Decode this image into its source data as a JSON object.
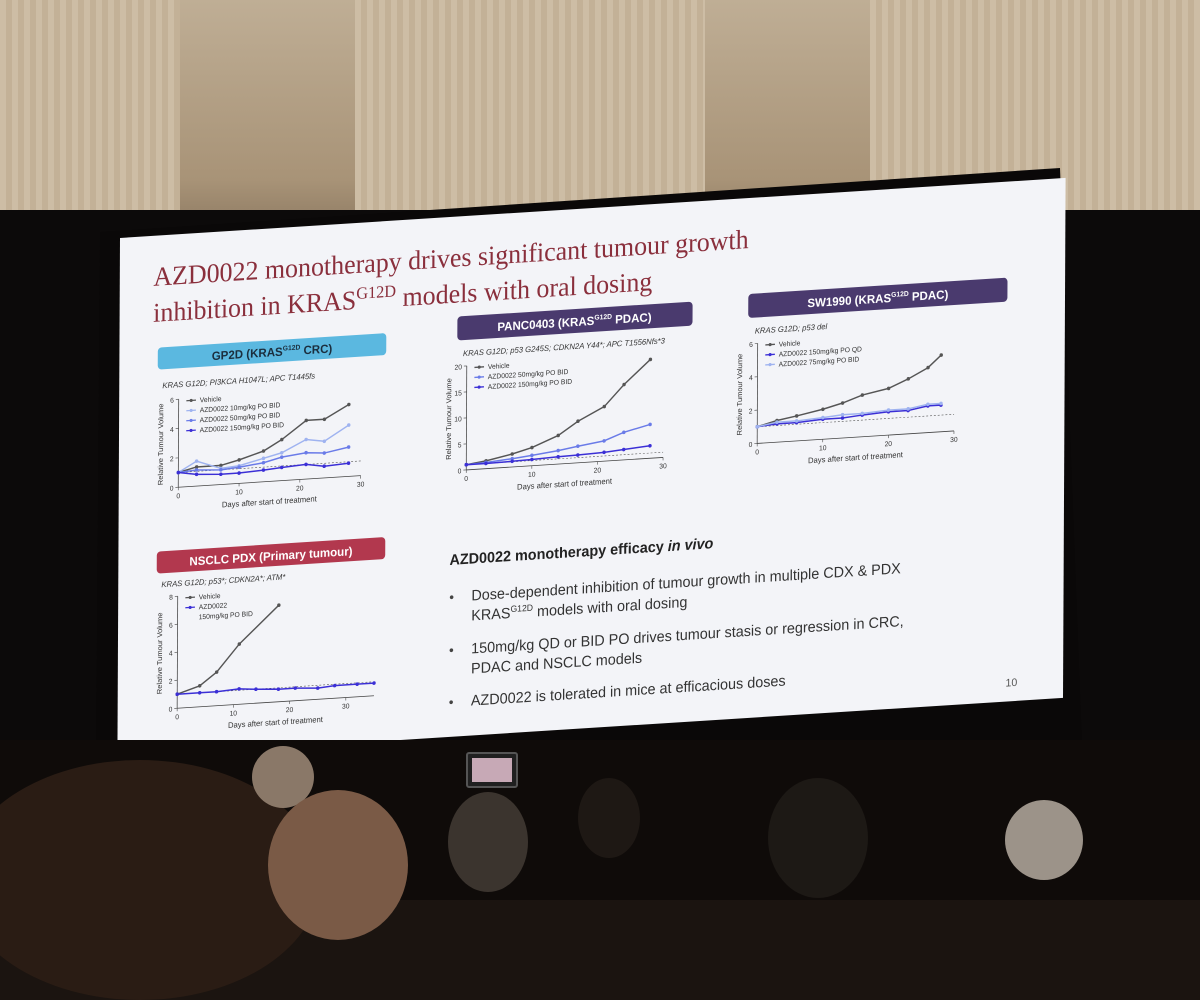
{
  "title_line1": "AZD0022 monotherapy drives significant tumour growth",
  "title_line2_pre": "inhibition in KRAS",
  "title_line2_sup": "G12D",
  "title_line2_post": " models with oral dosing",
  "page_number": "10",
  "colors": {
    "crc": "#5bb8e0",
    "pdac": "#4a3a6e",
    "nsclc": "#b2384e",
    "title": "#8a2f3c",
    "vehicle": "#555555",
    "dose_high": "#3b2fd6",
    "dose_mid": "#6a7be8",
    "dose_low": "#9fb3f0"
  },
  "charts": {
    "gp2d": {
      "header_pre": "GP2D (KRAS",
      "header_sup": "G12D",
      "header_post": " CRC)",
      "genotype": "KRAS G12D; PI3KCA H1047L; APC T1445fs",
      "ylabel": "Relative Tumour Volume",
      "xlabel": "Days after start of treatment",
      "legend": [
        "Vehicle",
        "AZD0022 10mg/kg PO BID",
        "AZD0022 50mg/kg PO BID",
        "AZD0022 150mg/kg PO BID"
      ]
    },
    "panc0403": {
      "header_pre": "PANC0403 (KRAS",
      "header_sup": "G12D",
      "header_post": " PDAC)",
      "genotype": "KRAS G12D; p53 G245S; CDKN2A Y44*; APC T1556Nfs*3",
      "ylabel": "Relative Tumour Volume",
      "xlabel": "Days after start of treatment",
      "legend": [
        "Vehicle",
        "AZD0022 50mg/kg PO BID",
        "AZD0022 150mg/kg PO BID"
      ]
    },
    "sw1990": {
      "header_pre": "SW1990 (KRAS",
      "header_sup": "G12D",
      "header_post": " PDAC)",
      "genotype": "KRAS G12D; p53 del",
      "ylabel": "Relative Tumour Volume",
      "xlabel": "Days after start of treatment",
      "legend": [
        "Vehicle",
        "AZD0022 150mg/kg PO QD",
        "AZD0022 75mg/kg PO BID"
      ]
    },
    "nsclc": {
      "header": "NSCLC PDX (Primary tumour)",
      "genotype": "KRAS G12D; p53*; CDKN2A*; ATM*",
      "ylabel": "Relative Tumour Volume",
      "xlabel": "Days after start of treatment",
      "legend": [
        "Vehicle",
        "AZD0022",
        "150mg/kg PO BID"
      ]
    }
  },
  "efficacy": {
    "heading_pre": "AZD0022 monotherapy efficacy ",
    "heading_em": "in vivo",
    "bullet1_line1": "Dose-dependent inhibition of tumour growth in multiple CDX & PDX",
    "bullet1_line2_pre": "KRAS",
    "bullet1_line2_sup": "G12D",
    "bullet1_line2_post": " models with oral dosing",
    "bullet2_line1": "150mg/kg QD or BID PO drives tumour stasis or regression in CRC,",
    "bullet2_line2": "PDAC and NSCLC models",
    "bullet3": "AZD0022 is tolerated in mice at efficacious doses"
  },
  "chart_data": [
    {
      "type": "line",
      "title": "GP2D (KRAS G12D CRC)",
      "xlabel": "Days after start of treatment",
      "ylabel": "Relative Tumour Volume",
      "xlim": [
        0,
        30
      ],
      "ylim": [
        0,
        6
      ],
      "xticks": [
        0,
        10,
        20,
        30
      ],
      "yticks": [
        0,
        2,
        4,
        6
      ],
      "series": [
        {
          "name": "Vehicle",
          "x": [
            0,
            3,
            7,
            10,
            14,
            17,
            21,
            24,
            28
          ],
          "y": [
            1.0,
            1.3,
            1.3,
            1.6,
            2.1,
            2.8,
            4.0,
            4.0,
            4.9
          ]
        },
        {
          "name": "AZD0022 10mg/kg PO BID",
          "x": [
            0,
            3,
            7,
            10,
            14,
            17,
            21,
            24,
            28
          ],
          "y": [
            1.0,
            1.7,
            1.1,
            1.2,
            1.6,
            1.9,
            2.7,
            2.5,
            3.5
          ]
        },
        {
          "name": "AZD0022 50mg/kg PO BID",
          "x": [
            0,
            3,
            7,
            10,
            14,
            17,
            21,
            24,
            28
          ],
          "y": [
            1.0,
            1.1,
            1.0,
            1.1,
            1.3,
            1.6,
            1.8,
            1.7,
            2.0
          ]
        },
        {
          "name": "AZD0022 150mg/kg PO BID",
          "x": [
            0,
            3,
            7,
            10,
            14,
            17,
            21,
            24,
            28
          ],
          "y": [
            1.0,
            0.8,
            0.7,
            0.7,
            0.8,
            0.9,
            1.0,
            0.8,
            0.9
          ]
        }
      ]
    },
    {
      "type": "line",
      "title": "PANC0403 (KRAS G12D PDAC)",
      "xlabel": "Days after start of treatment",
      "ylabel": "Relative Tumour Volume",
      "xlim": [
        0,
        30
      ],
      "ylim": [
        0,
        20
      ],
      "xticks": [
        0,
        10,
        20,
        30
      ],
      "yticks": [
        0,
        5,
        10,
        15,
        20
      ],
      "series": [
        {
          "name": "Vehicle",
          "x": [
            0,
            3,
            7,
            10,
            14,
            17,
            21,
            24,
            28
          ],
          "y": [
            1.0,
            1.5,
            2.5,
            3.5,
            5.5,
            8.0,
            10.5,
            14.5,
            19.0
          ]
        },
        {
          "name": "AZD0022 50mg/kg PO BID",
          "x": [
            0,
            3,
            7,
            10,
            14,
            17,
            21,
            24,
            28
          ],
          "y": [
            1.0,
            1.2,
            1.6,
            2.0,
            2.6,
            3.2,
            3.9,
            5.3,
            6.5
          ]
        },
        {
          "name": "AZD0022 150mg/kg PO BID",
          "x": [
            0,
            3,
            7,
            10,
            14,
            17,
            21,
            24,
            28
          ],
          "y": [
            1.0,
            1.0,
            1.1,
            1.2,
            1.4,
            1.5,
            1.7,
            2.0,
            2.4
          ]
        }
      ]
    },
    {
      "type": "line",
      "title": "SW1990 (KRAS G12D PDAC)",
      "xlabel": "Days after start of treatment",
      "ylabel": "Relative Tumour Volume",
      "xlim": [
        0,
        30
      ],
      "ylim": [
        0,
        6
      ],
      "xticks": [
        0,
        10,
        20,
        30
      ],
      "yticks": [
        0,
        2,
        4,
        6
      ],
      "series": [
        {
          "name": "Vehicle",
          "x": [
            0,
            3,
            6,
            10,
            13,
            16,
            20,
            23,
            26,
            28
          ],
          "y": [
            1.0,
            1.3,
            1.5,
            1.8,
            2.1,
            2.5,
            2.8,
            3.3,
            3.9,
            4.6
          ]
        },
        {
          "name": "AZD0022 150mg/kg PO QD",
          "x": [
            0,
            3,
            6,
            10,
            13,
            16,
            20,
            23,
            26,
            28
          ],
          "y": [
            1.0,
            1.1,
            1.1,
            1.2,
            1.2,
            1.3,
            1.4,
            1.4,
            1.6,
            1.6
          ]
        },
        {
          "name": "AZD0022 75mg/kg PO BID",
          "x": [
            0,
            3,
            6,
            10,
            13,
            16,
            20,
            23,
            26,
            28
          ],
          "y": [
            1.0,
            1.2,
            1.2,
            1.3,
            1.4,
            1.4,
            1.5,
            1.5,
            1.7,
            1.7
          ]
        }
      ]
    },
    {
      "type": "line",
      "title": "NSCLC PDX (Primary tumour)",
      "xlabel": "Days after start of treatment",
      "ylabel": "Relative Tumour Volume",
      "xlim": [
        0,
        35
      ],
      "ylim": [
        0,
        8
      ],
      "xticks": [
        0,
        10,
        20,
        30
      ],
      "yticks": [
        0,
        2,
        4,
        6,
        8
      ],
      "series": [
        {
          "name": "Vehicle",
          "x": [
            0,
            4,
            7,
            11,
            18
          ],
          "y": [
            1.0,
            1.5,
            2.4,
            4.3,
            6.9
          ]
        },
        {
          "name": "AZD0022 150mg/kg PO BID",
          "x": [
            0,
            4,
            7,
            11,
            14,
            18,
            21,
            25,
            28,
            32,
            35
          ],
          "y": [
            1.0,
            1.0,
            1.0,
            1.1,
            1.0,
            0.9,
            0.9,
            0.8,
            0.9,
            0.9,
            0.9
          ]
        }
      ]
    }
  ]
}
